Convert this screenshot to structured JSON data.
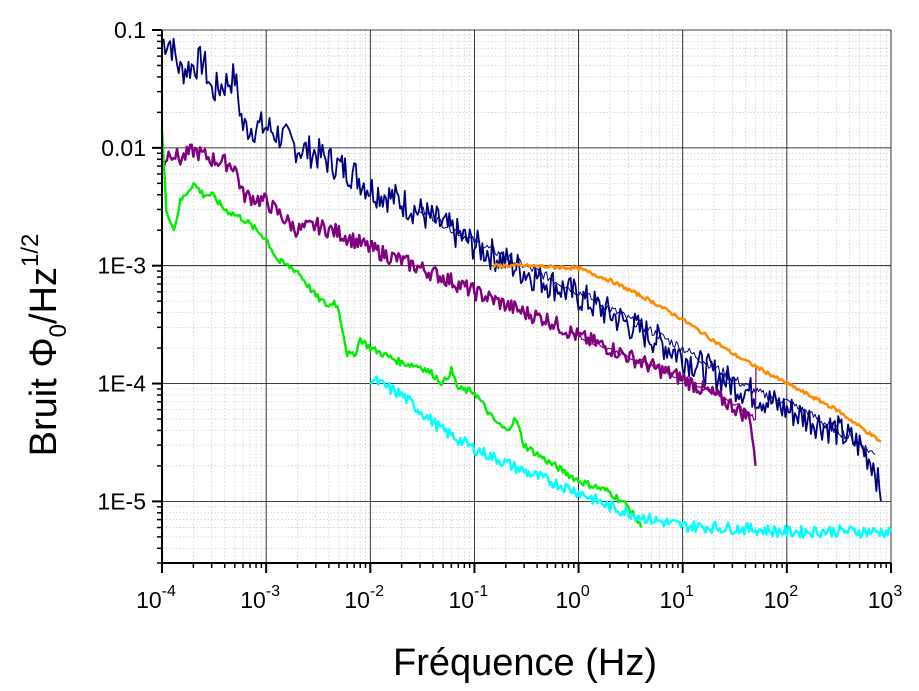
{
  "chart_data": {
    "type": "line",
    "xlabel": "Fréquence (Hz)",
    "ylabel": "Bruit Φ0/Hz1/2",
    "ylabel_parts": {
      "main": "Bruit Φ",
      "sub": "0",
      "unit": "/Hz",
      "sup": "1/2"
    },
    "x_scale": "log",
    "y_scale": "log",
    "xlim": [
      0.0001,
      1000
    ],
    "ylim": [
      3e-06,
      0.1
    ],
    "x_ticks": [
      {
        "value": 0.0001,
        "base": "10",
        "exp": "-4"
      },
      {
        "value": 0.001,
        "base": "10",
        "exp": "-3"
      },
      {
        "value": 0.01,
        "base": "10",
        "exp": "-2"
      },
      {
        "value": 0.1,
        "base": "10",
        "exp": "-1"
      },
      {
        "value": 1,
        "base": "10",
        "exp": "0"
      },
      {
        "value": 10,
        "base": "10",
        "exp": "1"
      },
      {
        "value": 100,
        "base": "10",
        "exp": "2"
      },
      {
        "value": 1000,
        "base": "10",
        "exp": "3"
      }
    ],
    "y_ticks": [
      {
        "value": 0.1,
        "label": "0.1"
      },
      {
        "value": 0.01,
        "label": "0.01"
      },
      {
        "value": 0.001,
        "label": "1E-3"
      },
      {
        "value": 0.0001,
        "label": "1E-4"
      },
      {
        "value": 1e-05,
        "label": "1E-5"
      }
    ],
    "grid": true,
    "legend": "none",
    "series": [
      {
        "color": "#000080",
        "width": 1.8,
        "noise": 0.14,
        "points": [
          [
            0.0001,
            0.08
          ],
          [
            0.00012,
            0.08
          ],
          [
            0.00015,
            0.045
          ],
          [
            0.0002,
            0.05
          ],
          [
            0.00025,
            0.055
          ],
          [
            0.0003,
            0.03
          ],
          [
            0.0004,
            0.035
          ],
          [
            0.0005,
            0.04
          ],
          [
            0.0006,
            0.015
          ],
          [
            0.001,
            0.015
          ],
          [
            0.0015,
            0.012
          ],
          [
            0.002,
            0.01
          ],
          [
            0.003,
            0.009
          ],
          [
            0.005,
            0.007
          ],
          [
            0.007,
            0.006
          ],
          [
            0.01,
            0.0045
          ],
          [
            0.02,
            0.0035
          ],
          [
            0.05,
            0.0022
          ],
          [
            0.1,
            0.0015
          ],
          [
            0.3,
            0.0009
          ],
          [
            1,
            0.00055
          ],
          [
            3,
            0.00032
          ],
          [
            5,
            0.00025
          ],
          [
            10,
            0.00017
          ],
          [
            30,
            0.0001
          ],
          [
            50,
            8e-05
          ],
          [
            100,
            6e-05
          ],
          [
            300,
            4e-05
          ],
          [
            500,
            3e-05
          ],
          [
            700,
            2e-05
          ],
          [
            800,
            1e-05
          ]
        ]
      },
      {
        "color": "#000080",
        "width": 1,
        "noise": 0.04,
        "points": [
          [
            0.03,
            0.003
          ],
          [
            0.1,
            0.0016
          ],
          [
            1,
            0.0006
          ],
          [
            10,
            0.0002
          ],
          [
            50,
            8.5e-05
          ],
          [
            100,
            7e-05
          ],
          [
            200,
            5e-05
          ],
          [
            400,
            3.5e-05
          ],
          [
            700,
            2.5e-05
          ]
        ]
      },
      {
        "color": "#800080",
        "width": 2.4,
        "noise": 0.07,
        "points": [
          [
            0.0001,
            0.007
          ],
          [
            0.00012,
            0.0095
          ],
          [
            0.00015,
            0.008
          ],
          [
            0.0002,
            0.0095
          ],
          [
            0.0003,
            0.008
          ],
          [
            0.0004,
            0.0075
          ],
          [
            0.0005,
            0.007
          ],
          [
            0.0006,
            0.004
          ],
          [
            0.001,
            0.0035
          ],
          [
            0.0015,
            0.0025
          ],
          [
            0.002,
            0.002
          ],
          [
            0.003,
            0.0022
          ],
          [
            0.005,
            0.0019
          ],
          [
            0.01,
            0.0014
          ],
          [
            0.02,
            0.0011
          ],
          [
            0.05,
            0.0008
          ],
          [
            0.1,
            0.0006
          ],
          [
            0.3,
            0.0004
          ],
          [
            0.5,
            0.00035
          ],
          [
            1,
            0.00025
          ],
          [
            2,
            0.0002
          ],
          [
            3,
            0.00017
          ],
          [
            5,
            0.00014
          ],
          [
            10,
            0.00011
          ],
          [
            20,
            8e-05
          ],
          [
            30,
            6.5e-05
          ],
          [
            45,
            5e-05
          ],
          [
            50,
            2e-05
          ]
        ]
      },
      {
        "color": "#800080",
        "width": 1.2,
        "noise": 0.02,
        "points": [
          [
            1,
            0.00025
          ],
          [
            3,
            0.00017
          ],
          [
            10,
            0.00011
          ],
          [
            30,
            7e-05
          ],
          [
            50,
            5e-05
          ],
          [
            50.5,
            0.00014
          ]
        ]
      },
      {
        "color": "#00ee00",
        "width": 2.4,
        "noise": 0.03,
        "points": [
          [
            0.0001,
            0.014
          ],
          [
            0.00011,
            0.003
          ],
          [
            0.00012,
            0.0025
          ],
          [
            0.00013,
            0.002
          ],
          [
            0.00015,
            0.0035
          ],
          [
            0.0002,
            0.005
          ],
          [
            0.00025,
            0.004
          ],
          [
            0.0003,
            0.004
          ],
          [
            0.0004,
            0.003
          ],
          [
            0.0006,
            0.0025
          ],
          [
            0.001,
            0.0017
          ],
          [
            0.0013,
            0.0011
          ],
          [
            0.002,
            0.0009
          ],
          [
            0.003,
            0.00055
          ],
          [
            0.004,
            0.00045
          ],
          [
            0.0045,
            0.0005
          ],
          [
            0.005,
            0.00042
          ],
          [
            0.006,
            0.00018
          ],
          [
            0.007,
            0.00017
          ],
          [
            0.008,
            0.00024
          ],
          [
            0.01,
            0.0002
          ],
          [
            0.02,
            0.00015
          ],
          [
            0.03,
            0.00014
          ],
          [
            0.04,
            0.00012
          ],
          [
            0.05,
            0.0001
          ],
          [
            0.06,
            0.00013
          ],
          [
            0.07,
            9e-05
          ],
          [
            0.1,
            8.5e-05
          ],
          [
            0.15,
            5e-05
          ],
          [
            0.2,
            4e-05
          ],
          [
            0.25,
            5e-05
          ],
          [
            0.3,
            3e-05
          ],
          [
            0.5,
            2.2e-05
          ],
          [
            1,
            1.5e-05
          ],
          [
            2,
            1.2e-05
          ],
          [
            3,
            9e-06
          ],
          [
            4,
            6e-06
          ]
        ]
      },
      {
        "color": "#00ffff",
        "width": 2.4,
        "noise": 0.05,
        "points": [
          [
            0.01,
            0.00011
          ],
          [
            0.02,
            8e-05
          ],
          [
            0.05,
            4e-05
          ],
          [
            0.1,
            2.8e-05
          ],
          [
            0.3,
            1.8e-05
          ],
          [
            1,
            1.2e-05
          ],
          [
            2,
            9e-06
          ],
          [
            5,
            7e-06
          ],
          [
            10,
            6.2e-06
          ],
          [
            50,
            5.8e-06
          ],
          [
            100,
            5.5e-06
          ],
          [
            300,
            5.6e-06
          ],
          [
            1000,
            5.5e-06
          ]
        ]
      },
      {
        "color": "#ff8c00",
        "width": 2.6,
        "noise": 0.015,
        "points": [
          [
            0.15,
            0.001
          ],
          [
            0.3,
            0.001
          ],
          [
            0.5,
            0.00098
          ],
          [
            1,
            0.00095
          ],
          [
            2,
            0.00075
          ],
          [
            5,
            0.0005
          ],
          [
            10,
            0.00035
          ],
          [
            30,
            0.00018
          ],
          [
            100,
            0.0001
          ],
          [
            300,
            6e-05
          ],
          [
            800,
            3.2e-05
          ]
        ]
      }
    ]
  }
}
